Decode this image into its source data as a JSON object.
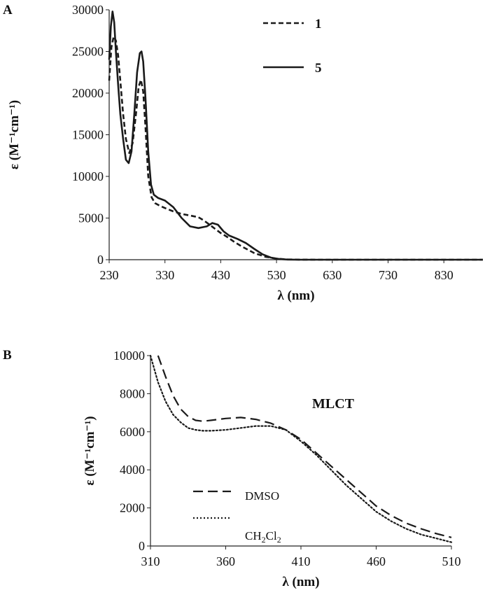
{
  "chart_data": [
    {
      "panel_label": "A",
      "type": "line",
      "xlabel": "λ (nm)",
      "ylabel": "ε  (M⁻¹cm⁻¹)",
      "xlim": [
        230,
        900
      ],
      "ylim": [
        0,
        30000
      ],
      "xticks": [
        "230",
        "330",
        "430",
        "530",
        "630",
        "730",
        "830"
      ],
      "yticks": [
        "0",
        "5000",
        "10000",
        "15000",
        "20000",
        "25000",
        "30000"
      ],
      "grid": false,
      "legend_position": "top-right",
      "series": [
        {
          "name": "1",
          "style": "dashed",
          "color": "#1a1a1a",
          "x": [
            230,
            234,
            238,
            242,
            246,
            250,
            255,
            260,
            266,
            272,
            278,
            283,
            287,
            291,
            295,
            300,
            306,
            312,
            320,
            330,
            345,
            360,
            375,
            390,
            400,
            410,
            420,
            430,
            440,
            455,
            470,
            490,
            510,
            530,
            550,
            570,
            600,
            650,
            700,
            800,
            900
          ],
          "y": [
            21500,
            25500,
            26800,
            26300,
            24500,
            21500,
            17500,
            14500,
            12800,
            14000,
            17500,
            20800,
            21600,
            20200,
            16000,
            10000,
            7500,
            6800,
            6500,
            6200,
            5800,
            5500,
            5300,
            5100,
            4700,
            4200,
            3700,
            3200,
            2800,
            2100,
            1500,
            800,
            350,
            120,
            40,
            10,
            0,
            0,
            0,
            0,
            0
          ]
        },
        {
          "name": "5",
          "style": "solid",
          "color": "#1a1a1a",
          "x": [
            230,
            233,
            236,
            239,
            242,
            246,
            250,
            255,
            260,
            265,
            270,
            275,
            280,
            285,
            288,
            291,
            295,
            300,
            305,
            310,
            318,
            330,
            345,
            360,
            375,
            390,
            405,
            415,
            425,
            435,
            445,
            460,
            475,
            490,
            505,
            520,
            535,
            550,
            570,
            600,
            650,
            700,
            800,
            900
          ],
          "y": [
            24000,
            28000,
            29800,
            28500,
            25000,
            21000,
            17500,
            14500,
            12000,
            11600,
            13000,
            17500,
            22500,
            24800,
            25000,
            23800,
            19500,
            13000,
            9000,
            7800,
            7400,
            7100,
            6300,
            5000,
            4000,
            3800,
            4000,
            4400,
            4200,
            3400,
            2900,
            2500,
            2000,
            1300,
            650,
            250,
            80,
            20,
            0,
            0,
            0,
            0,
            0,
            0
          ]
        }
      ]
    },
    {
      "panel_label": "B",
      "type": "line",
      "xlabel": "λ (nm)",
      "ylabel": "ε  (M⁻¹cm⁻¹)",
      "xlim": [
        310,
        510
      ],
      "ylim": [
        0,
        10000
      ],
      "xticks": [
        "310",
        "360",
        "410",
        "460",
        "510"
      ],
      "yticks": [
        "0",
        "2000",
        "4000",
        "6000",
        "8000",
        "10000"
      ],
      "grid": false,
      "annotation": "MLCT",
      "legend_position": "bottom-left",
      "series": [
        {
          "name": "DMSO",
          "style": "long-dashed",
          "color": "#1a1a1a",
          "x": [
            315,
            320,
            325,
            330,
            335,
            340,
            345,
            350,
            360,
            370,
            380,
            390,
            400,
            410,
            420,
            430,
            440,
            450,
            460,
            470,
            480,
            490,
            500,
            510
          ],
          "y": [
            10000,
            8900,
            7900,
            7200,
            6800,
            6600,
            6550,
            6600,
            6700,
            6750,
            6650,
            6450,
            6100,
            5600,
            4900,
            4200,
            3500,
            2800,
            2100,
            1600,
            1200,
            900,
            650,
            450
          ]
        },
        {
          "name": "CH₂Cl₂",
          "style": "dotted",
          "color": "#1a1a1a",
          "x": [
            310,
            315,
            320,
            325,
            330,
            335,
            340,
            345,
            350,
            360,
            370,
            380,
            390,
            400,
            410,
            420,
            430,
            440,
            450,
            460,
            470,
            480,
            490,
            500,
            510
          ],
          "y": [
            10000,
            8600,
            7600,
            6900,
            6500,
            6200,
            6100,
            6050,
            6050,
            6100,
            6200,
            6300,
            6300,
            6100,
            5500,
            4800,
            4000,
            3200,
            2500,
            1800,
            1300,
            900,
            600,
            400,
            200
          ]
        }
      ]
    }
  ],
  "legend_b_entries": [
    {
      "base": "DMSO"
    },
    {
      "base": "CH",
      "sub1": "2",
      "mid": "Cl",
      "sub2": "2"
    }
  ]
}
